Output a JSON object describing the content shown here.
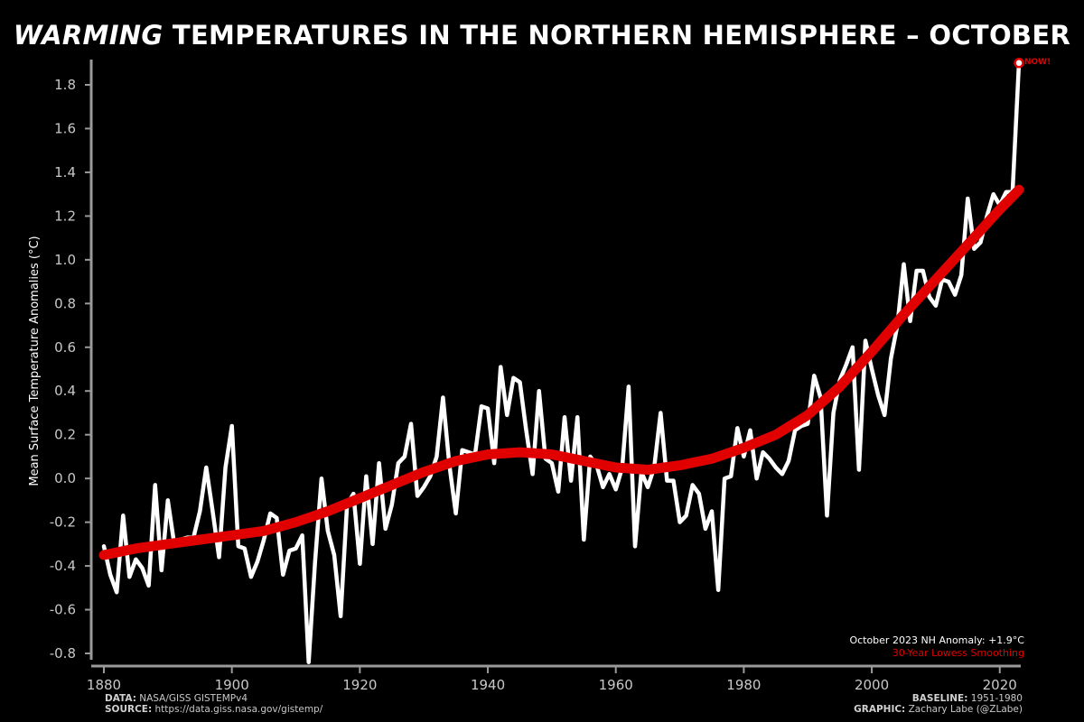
{
  "title": {
    "emph": "WARMING",
    "rest": " TEMPERATURES IN THE NORTHERN HEMISPHERE – OCTOBER"
  },
  "now_label": "NOW!",
  "note": {
    "anomaly": "October 2023 NH Anomaly: +1.9°C",
    "smoothing": "30-Year Lowess Smoothing"
  },
  "footer": {
    "data_key": "DATA:",
    "data_val": " NASA/GISS GISTEMPv4",
    "source_key": "SOURCE:",
    "source_val": " https://data.giss.nasa.gov/gistemp/",
    "baseline_key": "BASELINE:",
    "baseline_val": " 1951-1980",
    "graphic_key": "GRAPHIC:",
    "graphic_val": " Zachary Labe (@ZLabe)"
  },
  "colors": {
    "background": "#000000",
    "series": "#ffffff",
    "smooth": "#e00000",
    "axis": "#9a9a9a"
  },
  "chart_data": {
    "type": "line",
    "title": "WARMING TEMPERATURES IN THE NORTHERN HEMISPHERE – OCTOBER",
    "xlabel": "",
    "ylabel": "Mean Surface Temperature Anomalies (°C)",
    "xlim": [
      1880,
      2023
    ],
    "ylim": [
      -0.8,
      1.9
    ],
    "xticks": [
      1880,
      1900,
      1920,
      1940,
      1960,
      1980,
      2000,
      2020
    ],
    "yticks": [
      "-0.8",
      "-0.6",
      "-0.4",
      "-0.2",
      "0.0",
      "0.2",
      "0.4",
      "0.6",
      "0.8",
      "1.0",
      "1.2",
      "1.4",
      "1.6",
      "1.8"
    ],
    "grid": false,
    "series": [
      {
        "name": "October 2023 NH Anomaly: +1.9°C",
        "x": [
          1880,
          1881,
          1882,
          1883,
          1884,
          1885,
          1886,
          1887,
          1888,
          1889,
          1890,
          1891,
          1892,
          1893,
          1894,
          1895,
          1896,
          1897,
          1898,
          1899,
          1900,
          1901,
          1902,
          1903,
          1904,
          1905,
          1906,
          1907,
          1908,
          1909,
          1910,
          1911,
          1912,
          1913,
          1914,
          1915,
          1916,
          1917,
          1918,
          1919,
          1920,
          1921,
          1922,
          1923,
          1924,
          1925,
          1926,
          1927,
          1928,
          1929,
          1930,
          1931,
          1932,
          1933,
          1934,
          1935,
          1936,
          1937,
          1938,
          1939,
          1940,
          1941,
          1942,
          1943,
          1944,
          1945,
          1946,
          1947,
          1948,
          1949,
          1950,
          1951,
          1952,
          1953,
          1954,
          1955,
          1956,
          1957,
          1958,
          1959,
          1960,
          1961,
          1962,
          1963,
          1964,
          1965,
          1966,
          1967,
          1968,
          1969,
          1970,
          1971,
          1972,
          1973,
          1974,
          1975,
          1976,
          1977,
          1978,
          1979,
          1980,
          1981,
          1982,
          1983,
          1984,
          1985,
          1986,
          1987,
          1988,
          1989,
          1990,
          1991,
          1992,
          1993,
          1994,
          1995,
          1996,
          1997,
          1998,
          1999,
          2000,
          2001,
          2002,
          2003,
          2004,
          2005,
          2006,
          2007,
          2008,
          2009,
          2010,
          2011,
          2012,
          2013,
          2014,
          2015,
          2016,
          2017,
          2018,
          2019,
          2020,
          2021,
          2022,
          2023
        ],
        "y": [
          -0.31,
          -0.44,
          -0.52,
          -0.17,
          -0.45,
          -0.37,
          -0.41,
          -0.49,
          -0.03,
          -0.42,
          -0.1,
          -0.3,
          -0.28,
          -0.27,
          -0.27,
          -0.15,
          0.05,
          -0.15,
          -0.36,
          0.05,
          0.24,
          -0.31,
          -0.32,
          -0.45,
          -0.38,
          -0.28,
          -0.16,
          -0.18,
          -0.44,
          -0.33,
          -0.32,
          -0.26,
          -0.84,
          -0.38,
          0.0,
          -0.24,
          -0.35,
          -0.63,
          -0.12,
          -0.07,
          -0.39,
          0.01,
          -0.3,
          0.07,
          -0.23,
          -0.12,
          0.07,
          0.1,
          0.25,
          -0.08,
          -0.04,
          0.01,
          0.1,
          0.37,
          0.06,
          -0.16,
          0.13,
          0.12,
          0.11,
          0.33,
          0.32,
          0.07,
          0.51,
          0.29,
          0.46,
          0.44,
          0.22,
          0.02,
          0.4,
          0.09,
          0.07,
          -0.06,
          0.28,
          -0.01,
          0.28,
          -0.28,
          0.1,
          0.06,
          -0.04,
          0.02,
          -0.05,
          0.05,
          0.42,
          -0.31,
          0.03,
          -0.04,
          0.05,
          0.3,
          -0.01,
          -0.01,
          -0.2,
          -0.17,
          -0.03,
          -0.07,
          -0.23,
          -0.15,
          -0.51,
          0.0,
          0.01,
          0.23,
          0.1,
          0.22,
          0.0,
          0.12,
          0.09,
          0.05,
          0.02,
          0.08,
          0.22,
          0.24,
          0.25,
          0.47,
          0.37,
          -0.17,
          0.3,
          0.45,
          0.52,
          0.6,
          0.04,
          0.63,
          0.5,
          0.38,
          0.29,
          0.55,
          0.7,
          0.98,
          0.72,
          0.95,
          0.95,
          0.83,
          0.79,
          0.91,
          0.9,
          0.84,
          0.93,
          1.28,
          1.05,
          1.08,
          1.2,
          1.3,
          1.25,
          1.31,
          1.31,
          1.9
        ]
      },
      {
        "name": "30-Year Lowess Smoothing",
        "x": [
          1880,
          1885,
          1890,
          1895,
          1900,
          1905,
          1910,
          1915,
          1920,
          1925,
          1930,
          1935,
          1940,
          1945,
          1950,
          1955,
          1960,
          1965,
          1970,
          1975,
          1980,
          1985,
          1990,
          1995,
          2000,
          2005,
          2010,
          2015,
          2020,
          2023
        ],
        "y": [
          -0.35,
          -0.32,
          -0.3,
          -0.28,
          -0.26,
          -0.24,
          -0.2,
          -0.15,
          -0.09,
          -0.03,
          0.03,
          0.08,
          0.11,
          0.12,
          0.11,
          0.08,
          0.05,
          0.04,
          0.06,
          0.09,
          0.14,
          0.2,
          0.29,
          0.42,
          0.58,
          0.75,
          0.91,
          1.07,
          1.23,
          1.32
        ]
      }
    ]
  }
}
